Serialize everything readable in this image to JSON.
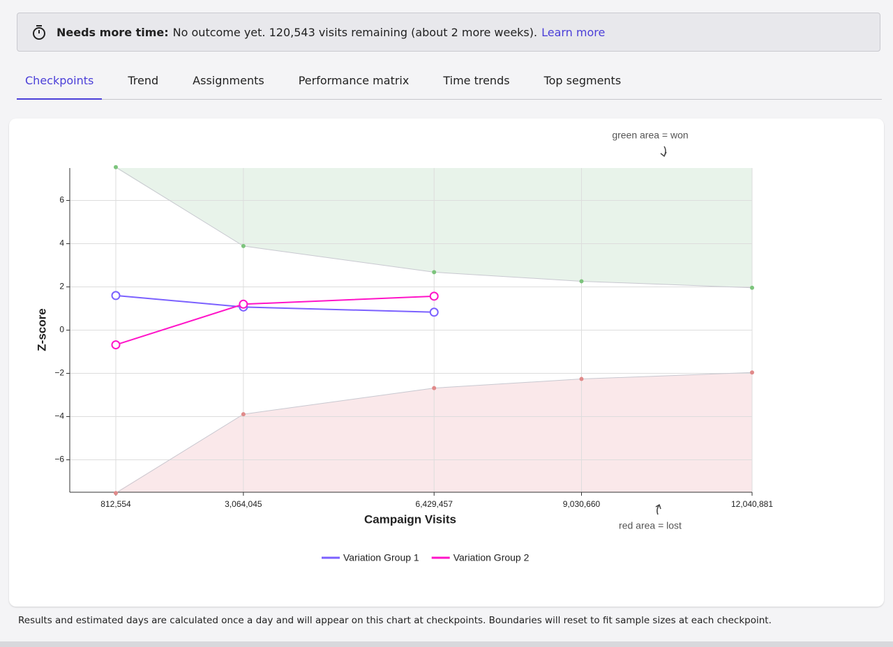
{
  "banner": {
    "label": "Needs more time:",
    "text": "No outcome yet. 120,543 visits remaining (about 2 more weeks).",
    "link": "Learn more"
  },
  "tabs": [
    {
      "label": "Checkpoints",
      "active": true
    },
    {
      "label": "Trend",
      "active": false
    },
    {
      "label": "Assignments",
      "active": false
    },
    {
      "label": "Performance matrix",
      "active": false
    },
    {
      "label": "Time trends",
      "active": false
    },
    {
      "label": "Top segments",
      "active": false
    }
  ],
  "chart_data": {
    "type": "line",
    "x_label": "Campaign Visits",
    "y_label": "Z-score",
    "x": [
      812554,
      3064045,
      6429457,
      9030660,
      12040881
    ],
    "series": [
      {
        "name": "Variation Group 1",
        "color": "#7b61ff",
        "values": [
          1.6,
          1.07,
          0.83,
          null,
          null
        ]
      },
      {
        "name": "Variation Group 2",
        "color": "#ff14c8",
        "values": [
          -0.68,
          1.2,
          1.57,
          null,
          null
        ]
      }
    ],
    "boundaries": {
      "upper": [
        7.54,
        3.89,
        2.68,
        2.26,
        1.96
      ],
      "lower": [
        -7.54,
        -3.89,
        -2.68,
        -2.26,
        -1.96
      ],
      "upper_color": "#7cc47c",
      "lower_color": "#e08a8a",
      "upper_fill": "#e8f3ea",
      "lower_fill": "#fae8ea"
    },
    "xlim": [
      0,
      12040881
    ],
    "ylim": [
      -7.5,
      7.5
    ],
    "xticks": [
      {
        "value": 812554,
        "label": "812,554"
      },
      {
        "value": 3064045,
        "label": "3,064,045"
      },
      {
        "value": 6429457,
        "label": "6,429,457"
      },
      {
        "value": 9030660,
        "label": "9,030,660"
      },
      {
        "value": 12040881,
        "label": "12,040,881"
      }
    ],
    "yticks": [
      {
        "value": -6,
        "label": "−6"
      },
      {
        "value": -4,
        "label": "−4"
      },
      {
        "value": -2,
        "label": "−2"
      },
      0,
      2,
      4,
      6
    ],
    "grid": true,
    "annotations": [
      "green area = won",
      "red area = lost"
    ]
  },
  "footnote": "Results and estimated days are calculated once a day and will appear on this chart at checkpoints. Boundaries will reset to fit sample sizes at each checkpoint."
}
